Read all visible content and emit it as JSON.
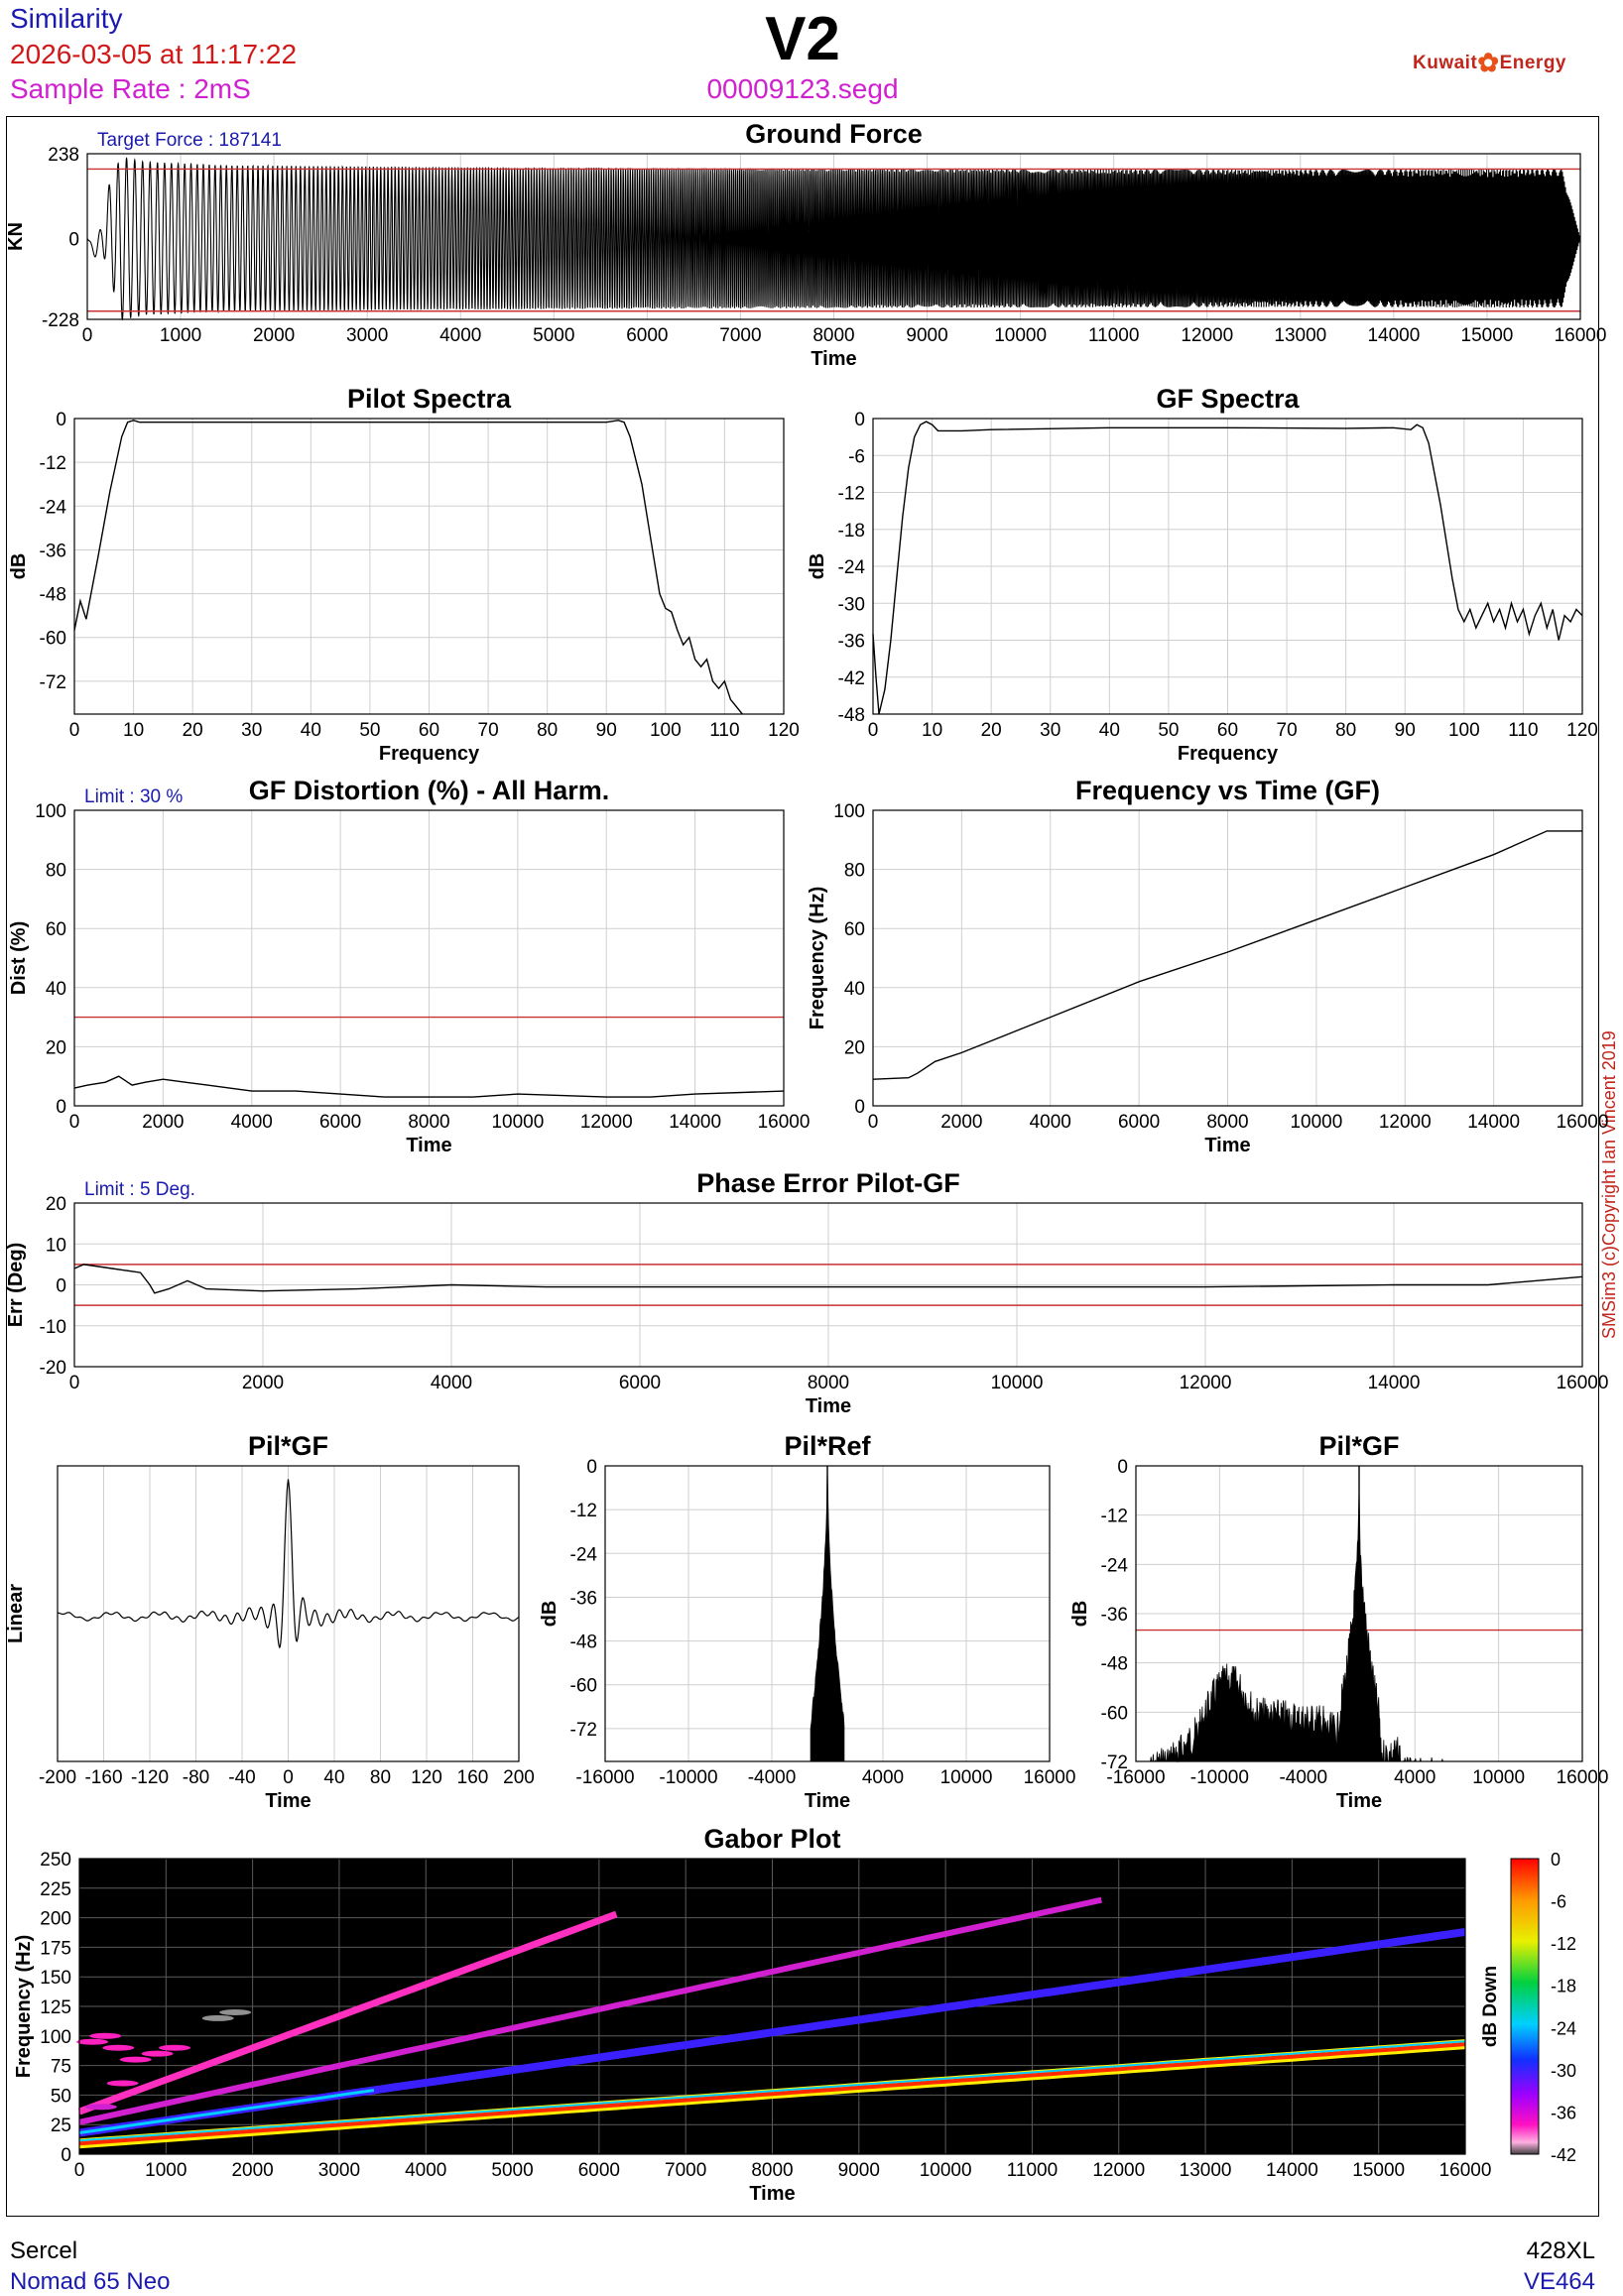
{
  "header": {
    "app": "Similarity",
    "datetime": "2026-03-05 at 11:17:22",
    "sample_rate": "Sample Rate : 2mS",
    "title": "V2",
    "filename": "00009123.segd",
    "logo_left": "Kuwait",
    "logo_right": "Energy",
    "copyright": "SMSim3 (c)Copyright Ian Vincent 2019"
  },
  "footer": {
    "left_top": "Sercel",
    "left_bottom": "Nomad 65 Neo",
    "right_top": "428XL",
    "right_bottom": "VE464"
  },
  "colors": {
    "blue": "#1a1ab0",
    "red": "#d01818",
    "magenta": "#d020d0",
    "limit": "#c83232"
  },
  "chart_data": [
    {
      "id": "ground_force",
      "type": "line",
      "title": "Ground Force",
      "annotation": "Target Force : 187141",
      "xlabel": "Time",
      "ylabel": "KN",
      "xlim": [
        0,
        16000
      ],
      "ylim": [
        -228,
        238
      ],
      "xticks": [
        0,
        1000,
        2000,
        3000,
        4000,
        5000,
        6000,
        7000,
        8000,
        9000,
        10000,
        11000,
        12000,
        13000,
        14000,
        15000,
        16000
      ],
      "yticks": [
        238,
        0,
        -228
      ],
      "limits": [
        195,
        -205
      ],
      "envelope": [
        [
          0,
          0
        ],
        [
          150,
          40
        ],
        [
          350,
          230
        ],
        [
          600,
          215
        ],
        [
          1500,
          205
        ],
        [
          4000,
          200
        ],
        [
          9000,
          195
        ],
        [
          13000,
          193
        ],
        [
          15800,
          195
        ],
        [
          16000,
          0
        ]
      ]
    },
    {
      "id": "pilot_spectra",
      "type": "line",
      "title": "Pilot Spectra",
      "xlabel": "Frequency",
      "ylabel": "dB",
      "xlim": [
        0,
        120
      ],
      "ylim": [
        -81,
        0
      ],
      "xticks": [
        0,
        10,
        20,
        30,
        40,
        50,
        60,
        70,
        80,
        90,
        100,
        110,
        120
      ],
      "yticks": [
        0,
        -12,
        -24,
        -36,
        -48,
        -60,
        -72
      ],
      "points": [
        [
          0,
          -58
        ],
        [
          1,
          -50
        ],
        [
          2,
          -55
        ],
        [
          4,
          -38
        ],
        [
          6,
          -20
        ],
        [
          8,
          -5
        ],
        [
          9,
          -1
        ],
        [
          10,
          -0.5
        ],
        [
          11,
          -1
        ],
        [
          90,
          -1
        ],
        [
          92,
          -0.5
        ],
        [
          93,
          -1
        ],
        [
          94,
          -5
        ],
        [
          96,
          -18
        ],
        [
          98,
          -38
        ],
        [
          99,
          -48
        ],
        [
          100,
          -52
        ],
        [
          101,
          -53
        ],
        [
          102,
          -58
        ],
        [
          103,
          -62
        ],
        [
          104,
          -60
        ],
        [
          105,
          -66
        ],
        [
          106,
          -68
        ],
        [
          107,
          -66
        ],
        [
          108,
          -72
        ],
        [
          109,
          -74
        ],
        [
          110,
          -72
        ],
        [
          111,
          -77
        ],
        [
          112,
          -79
        ],
        [
          113,
          -81
        ]
      ]
    },
    {
      "id": "gf_spectra",
      "type": "line",
      "title": "GF Spectra",
      "xlabel": "Frequency",
      "ylabel": "dB",
      "xlim": [
        0,
        120
      ],
      "ylim": [
        -48,
        0
      ],
      "xticks": [
        0,
        10,
        20,
        30,
        40,
        50,
        60,
        70,
        80,
        90,
        100,
        110,
        120
      ],
      "yticks": [
        0,
        -6,
        -12,
        -18,
        -24,
        -30,
        -36,
        -42,
        -48
      ],
      "points": [
        [
          0,
          -35
        ],
        [
          0.5,
          -42
        ],
        [
          1,
          -48
        ],
        [
          2,
          -44
        ],
        [
          3,
          -36
        ],
        [
          4,
          -26
        ],
        [
          5,
          -16
        ],
        [
          6,
          -8
        ],
        [
          7,
          -3
        ],
        [
          8,
          -1
        ],
        [
          9,
          -0.5
        ],
        [
          10,
          -1
        ],
        [
          11,
          -2
        ],
        [
          15,
          -2
        ],
        [
          20,
          -1.8
        ],
        [
          40,
          -1.5
        ],
        [
          60,
          -1.5
        ],
        [
          80,
          -1.6
        ],
        [
          88,
          -1.5
        ],
        [
          91,
          -1.8
        ],
        [
          92,
          -1
        ],
        [
          93,
          -1.5
        ],
        [
          94,
          -4
        ],
        [
          96,
          -14
        ],
        [
          98,
          -26
        ],
        [
          99,
          -31
        ],
        [
          100,
          -33
        ],
        [
          101,
          -31
        ],
        [
          102,
          -34
        ],
        [
          103,
          -32
        ],
        [
          104,
          -30
        ],
        [
          105,
          -33
        ],
        [
          106,
          -31
        ],
        [
          107,
          -34
        ],
        [
          108,
          -30
        ],
        [
          109,
          -33
        ],
        [
          110,
          -31
        ],
        [
          111,
          -35
        ],
        [
          112,
          -32
        ],
        [
          113,
          -30
        ],
        [
          114,
          -34
        ],
        [
          115,
          -31
        ],
        [
          116,
          -36
        ],
        [
          117,
          -32
        ],
        [
          118,
          -33
        ],
        [
          119,
          -31
        ],
        [
          120,
          -32
        ]
      ]
    },
    {
      "id": "gf_distortion",
      "type": "line",
      "title": "GF Distortion (%) - All Harm.",
      "annotation": "Limit : 30 %",
      "xlabel": "Time",
      "ylabel": "Dist (%)",
      "xlim": [
        0,
        16000
      ],
      "ylim": [
        0,
        100
      ],
      "xticks": [
        0,
        2000,
        4000,
        6000,
        8000,
        10000,
        12000,
        14000,
        16000
      ],
      "yticks": [
        0,
        20,
        40,
        60,
        80,
        100
      ],
      "limit": 30,
      "points": [
        [
          0,
          6
        ],
        [
          300,
          7
        ],
        [
          700,
          8
        ],
        [
          1000,
          10
        ],
        [
          1300,
          7
        ],
        [
          1600,
          8
        ],
        [
          2000,
          9
        ],
        [
          2500,
          8
        ],
        [
          3000,
          7
        ],
        [
          4000,
          5
        ],
        [
          5000,
          5
        ],
        [
          6000,
          4
        ],
        [
          7000,
          3
        ],
        [
          9000,
          3
        ],
        [
          10000,
          4
        ],
        [
          12000,
          3
        ],
        [
          13000,
          3
        ],
        [
          14000,
          4
        ],
        [
          16000,
          5
        ]
      ]
    },
    {
      "id": "freq_vs_time",
      "type": "line",
      "title": "Frequency vs Time (GF)",
      "xlabel": "Time",
      "ylabel": "Frequency (Hz)",
      "xlim": [
        0,
        16000
      ],
      "ylim": [
        0,
        100
      ],
      "xticks": [
        0,
        2000,
        4000,
        6000,
        8000,
        10000,
        12000,
        14000,
        16000
      ],
      "yticks": [
        0,
        20,
        40,
        60,
        80,
        100
      ],
      "points": [
        [
          0,
          9
        ],
        [
          800,
          9.5
        ],
        [
          1000,
          11
        ],
        [
          1400,
          15
        ],
        [
          2000,
          18
        ],
        [
          4000,
          30
        ],
        [
          6000,
          42
        ],
        [
          8000,
          52
        ],
        [
          10000,
          63
        ],
        [
          12000,
          74
        ],
        [
          14000,
          85
        ],
        [
          15200,
          93
        ],
        [
          15600,
          93
        ],
        [
          16000,
          93
        ]
      ]
    },
    {
      "id": "phase_error",
      "type": "line",
      "title": "Phase Error Pilot-GF",
      "annotation": "Limit : 5 Deg.",
      "xlabel": "Time",
      "ylabel": "Err (Deg)",
      "xlim": [
        0,
        16000
      ],
      "ylim": [
        -20,
        20
      ],
      "xticks": [
        0,
        2000,
        4000,
        6000,
        8000,
        10000,
        12000,
        14000,
        16000
      ],
      "yticks": [
        20,
        10,
        0,
        -10,
        -20
      ],
      "limits": [
        5,
        -5
      ],
      "points": [
        [
          0,
          4
        ],
        [
          100,
          5
        ],
        [
          400,
          4
        ],
        [
          700,
          3
        ],
        [
          800,
          0
        ],
        [
          850,
          -2
        ],
        [
          1000,
          -1
        ],
        [
          1200,
          1
        ],
        [
          1400,
          -1
        ],
        [
          2000,
          -1.5
        ],
        [
          3000,
          -1
        ],
        [
          4000,
          0
        ],
        [
          5000,
          -0.5
        ],
        [
          6000,
          -0.5
        ],
        [
          8000,
          -0.5
        ],
        [
          10000,
          -0.5
        ],
        [
          12000,
          -0.5
        ],
        [
          14000,
          0
        ],
        [
          15000,
          0
        ],
        [
          15500,
          1
        ],
        [
          16000,
          2
        ]
      ]
    },
    {
      "id": "pil_gf_linear",
      "type": "line",
      "title": "Pil*GF",
      "xlabel": "Time",
      "ylabel": "Linear",
      "xlim": [
        -200,
        200
      ],
      "ylim": [
        -1.1,
        1.1
      ],
      "xticks": [
        -200,
        -160,
        -120,
        -80,
        -40,
        0,
        40,
        80,
        120,
        160,
        200
      ]
    },
    {
      "id": "pil_ref",
      "type": "area",
      "title": "Pil*Ref",
      "xlabel": "Time",
      "ylabel": "dB",
      "xlim": [
        -16000,
        16000
      ],
      "ylim": [
        -81,
        0
      ],
      "xticks": [
        -16000,
        -10000,
        -4000,
        4000,
        10000,
        16000
      ],
      "yticks": [
        0,
        -12,
        -24,
        -36,
        -48,
        -60,
        -72
      ]
    },
    {
      "id": "pil_gf_db",
      "type": "area",
      "title": "Pil*GF",
      "xlabel": "Time",
      "ylabel": "dB",
      "xlim": [
        -16000,
        16000
      ],
      "ylim": [
        -72,
        0
      ],
      "xticks": [
        -16000,
        -10000,
        -4000,
        4000,
        10000,
        16000
      ],
      "yticks": [
        0,
        -12,
        -24,
        -36,
        -48,
        -60,
        -72
      ],
      "limit": -40
    },
    {
      "id": "gabor",
      "type": "heatmap",
      "title": "Gabor Plot",
      "xlabel": "Time",
      "ylabel": "Frequency (Hz)",
      "colorbar_label": "dB Down",
      "xlim": [
        0,
        16000
      ],
      "ylim": [
        0,
        250
      ],
      "xticks": [
        0,
        1000,
        2000,
        3000,
        4000,
        5000,
        6000,
        7000,
        8000,
        9000,
        10000,
        11000,
        12000,
        13000,
        14000,
        15000,
        16000
      ],
      "yticks": [
        0,
        25,
        50,
        75,
        100,
        125,
        150,
        175,
        200,
        225,
        250
      ],
      "colorbar_ticks": [
        0,
        -6,
        -12,
        -18,
        -24,
        -30,
        -36,
        -42
      ],
      "harmonics": [
        {
          "order": 1,
          "f0": 9,
          "f1": 93,
          "t1": 16000
        },
        {
          "order": 2,
          "f0": 18,
          "f1": 188,
          "t1": 16000
        },
        {
          "order": 3,
          "f0": 27,
          "f1": 215,
          "t1": 11800
        },
        {
          "order": 4,
          "f0": 36,
          "f1": 203,
          "t1": 6200
        }
      ]
    }
  ]
}
